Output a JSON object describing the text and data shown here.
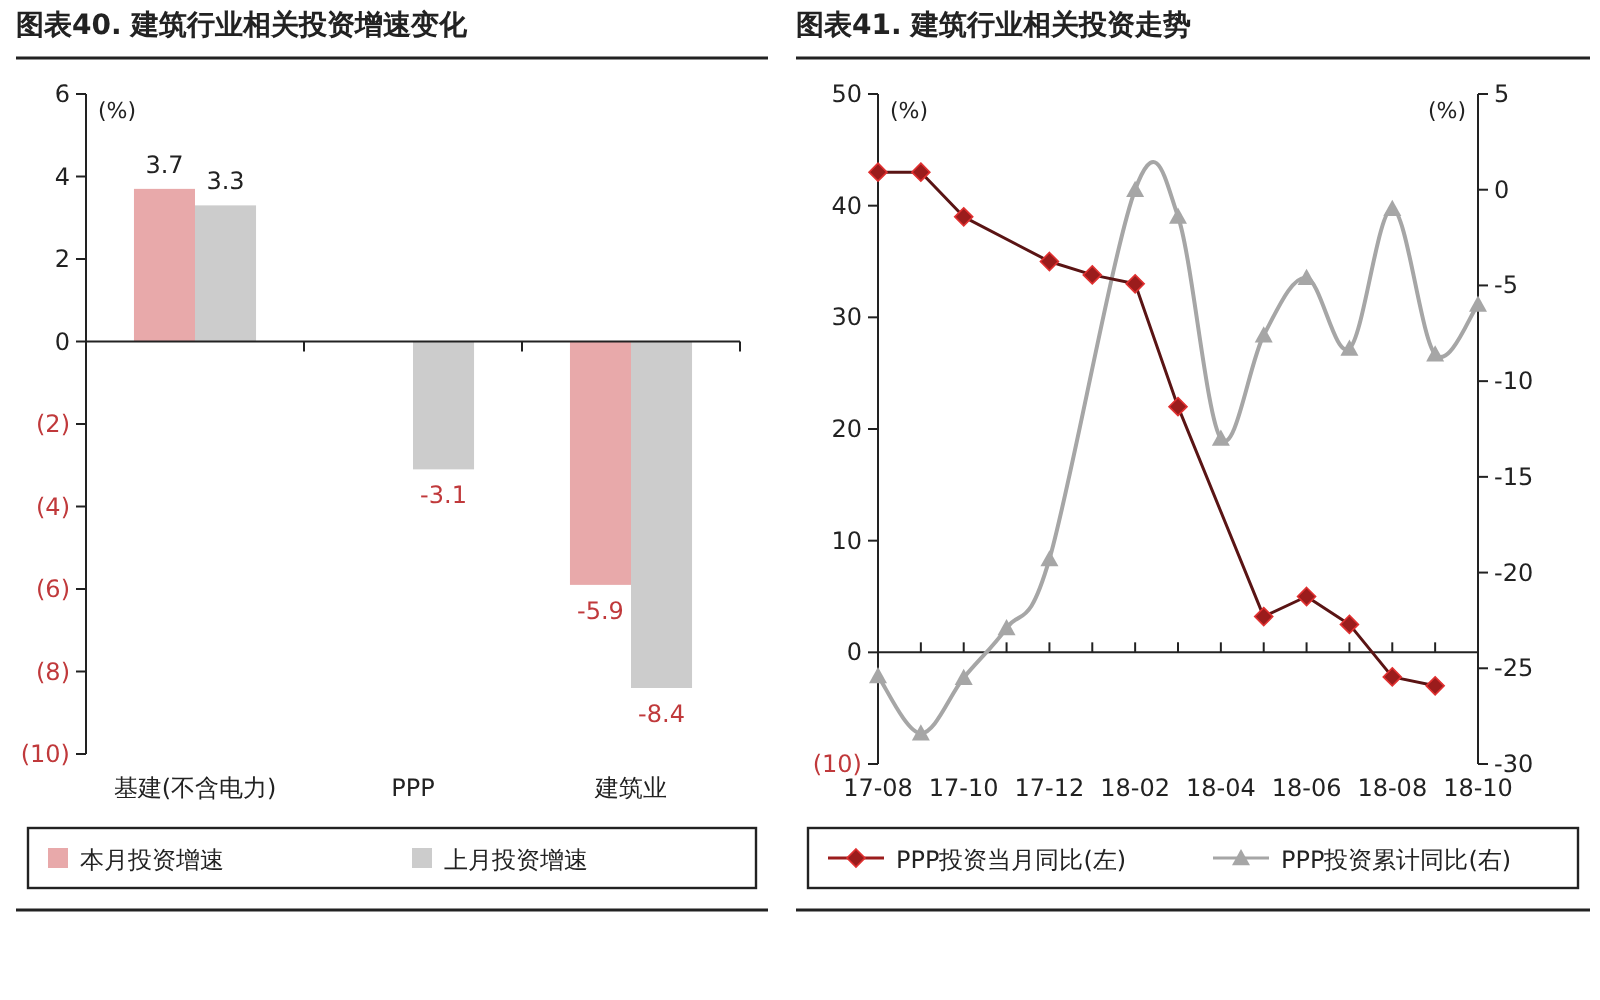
{
  "chart_data": [
    {
      "type": "bar",
      "title": "图表40. 建筑行业相关投资增速变化",
      "ylabel": "(%)",
      "categories": [
        "基建(不含电力)",
        "PPP",
        "建筑业"
      ],
      "series": [
        {
          "name": "本月投资增速",
          "color": "#e8a9aa",
          "values": [
            3.7,
            null,
            -5.9
          ]
        },
        {
          "name": "上月投资增速",
          "color": "#cccccc",
          "values": [
            3.3,
            -3.1,
            -8.4
          ]
        }
      ],
      "ylim": [
        -10,
        6
      ],
      "yticks": [
        6,
        4,
        2,
        0,
        {
          "value": -2,
          "label": "(2)"
        },
        {
          "value": -4,
          "label": "(4)"
        },
        {
          "value": -6,
          "label": "(6)"
        },
        {
          "value": -8,
          "label": "(8)"
        },
        {
          "value": -10,
          "label": "(10)"
        }
      ],
      "data_labels": true,
      "legend": "bottom"
    },
    {
      "type": "line",
      "title": "图表41. 建筑行业相关投资走势",
      "ylabel": "(%)",
      "y2label": "(%)",
      "series": [
        {
          "name": "PPP投资当月同比(左)",
          "color": "#9b1c1c",
          "marker": "diamond",
          "values": [
            43,
            43,
            39,
            null,
            35,
            33.8,
            33,
            22,
            null,
            3.2,
            5,
            2.5,
            -2.2,
            -3,
            null
          ]
        },
        {
          "name": "PPP投资累计同比(右)",
          "color": "#a6a6a6",
          "marker": "triangle",
          "axis": "y2",
          "values": [
            -25.4,
            -28.4,
            -25.5,
            -22.9,
            -19.3,
            null,
            0,
            -1.4,
            -13,
            -7.6,
            -4.6,
            -8.3,
            -1,
            -8.6,
            -6
          ]
        }
      ],
      "categories": [
        "17-08",
        null,
        "17-10",
        null,
        "17-12",
        null,
        "18-02",
        null,
        "18-04",
        null,
        "18-06",
        null,
        "18-08",
        null,
        "18-10"
      ],
      "ylim": [
        -10,
        50
      ],
      "yticks": [
        {
          "value": -10,
          "label": "(10)"
        },
        0,
        10,
        20,
        30,
        40,
        50
      ],
      "y2lim": [
        -30,
        5
      ],
      "y2ticks": [
        -30,
        -25,
        -20,
        -15,
        -10,
        -5,
        0,
        5
      ],
      "legend": "bottom"
    }
  ]
}
